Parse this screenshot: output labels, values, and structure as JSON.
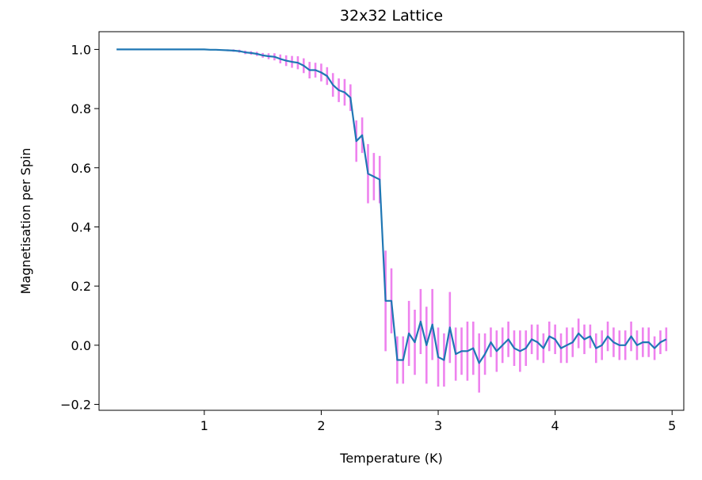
{
  "chart_data": {
    "type": "line",
    "title": "32x32 Lattice",
    "xlabel": "Temperature (K)",
    "ylabel": "Magnetisation per Spin",
    "xlim": [
      0.1,
      5.1
    ],
    "ylim": [
      -0.22,
      1.06
    ],
    "xticks": [
      1,
      2,
      3,
      4,
      5
    ],
    "yticks": [
      -0.2,
      0.0,
      0.2,
      0.4,
      0.6,
      0.8,
      1.0
    ],
    "xtick_labels": [
      "1",
      "2",
      "3",
      "4",
      "5"
    ],
    "ytick_labels": [
      "−0.2",
      "0.0",
      "0.2",
      "0.4",
      "0.6",
      "0.8",
      "1.0"
    ],
    "grid": false,
    "line_color": "#1f77b4",
    "errorbar_color": "#ee82ee",
    "series": [
      {
        "x": [
          0.25,
          0.3,
          0.35,
          0.4,
          0.45,
          0.5,
          0.55,
          0.6,
          0.65,
          0.7,
          0.75,
          0.8,
          0.85,
          0.9,
          0.95,
          1.0,
          1.05,
          1.1,
          1.15,
          1.2,
          1.25,
          1.3,
          1.35,
          1.4,
          1.45,
          1.5,
          1.55,
          1.6,
          1.65,
          1.7,
          1.75,
          1.8,
          1.85,
          1.9,
          1.95,
          2.0,
          2.05,
          2.1,
          2.15,
          2.2,
          2.25,
          2.3,
          2.35,
          2.4,
          2.45,
          2.5,
          2.55,
          2.6,
          2.65,
          2.7,
          2.75,
          2.8,
          2.85,
          2.9,
          2.95,
          3.0,
          3.05,
          3.1,
          3.15,
          3.2,
          3.25,
          3.3,
          3.35,
          3.4,
          3.45,
          3.5,
          3.55,
          3.6,
          3.65,
          3.7,
          3.75,
          3.8,
          3.85,
          3.9,
          3.95,
          4.0,
          4.05,
          4.1,
          4.15,
          4.2,
          4.25,
          4.3,
          4.35,
          4.4,
          4.45,
          4.5,
          4.55,
          4.6,
          4.65,
          4.7,
          4.75,
          4.8,
          4.85,
          4.9,
          4.95
        ],
        "y": [
          1.0,
          1.0,
          1.0,
          1.0,
          1.0,
          1.0,
          1.0,
          1.0,
          1.0,
          1.0,
          1.0,
          1.0,
          1.0,
          1.0,
          1.0,
          1.0,
          0.999,
          0.999,
          0.998,
          0.997,
          0.996,
          0.994,
          0.99,
          0.988,
          0.985,
          0.98,
          0.977,
          0.975,
          0.968,
          0.962,
          0.958,
          0.955,
          0.945,
          0.93,
          0.93,
          0.922,
          0.91,
          0.88,
          0.862,
          0.855,
          0.837,
          0.69,
          0.71,
          0.58,
          0.57,
          0.56,
          0.15,
          0.15,
          -0.05,
          -0.05,
          0.04,
          0.01,
          0.08,
          0.0,
          0.07,
          -0.04,
          -0.05,
          0.06,
          -0.03,
          -0.02,
          -0.02,
          -0.01,
          -0.06,
          -0.03,
          0.01,
          -0.02,
          0.0,
          0.02,
          -0.01,
          -0.02,
          -0.01,
          0.02,
          0.01,
          -0.01,
          0.03,
          0.02,
          -0.01,
          0.0,
          0.01,
          0.04,
          0.02,
          0.03,
          -0.01,
          0.0,
          0.03,
          0.01,
          0.0,
          0.0,
          0.03,
          0.0,
          0.01,
          0.01,
          -0.01,
          0.01,
          0.02
        ],
        "err": [
          0.0,
          0.0,
          0.0,
          0.0,
          0.0,
          0.0,
          0.0,
          0.0,
          0.0,
          0.0,
          0.0,
          0.0,
          0.0,
          0.0,
          0.0,
          0.0,
          0.001,
          0.001,
          0.002,
          0.003,
          0.004,
          0.005,
          0.006,
          0.006,
          0.007,
          0.008,
          0.01,
          0.012,
          0.015,
          0.018,
          0.02,
          0.022,
          0.025,
          0.028,
          0.025,
          0.03,
          0.03,
          0.04,
          0.04,
          0.045,
          0.045,
          0.07,
          0.06,
          0.1,
          0.08,
          0.08,
          0.17,
          0.11,
          0.08,
          0.08,
          0.11,
          0.11,
          0.11,
          0.13,
          0.12,
          0.1,
          0.09,
          0.12,
          0.09,
          0.08,
          0.1,
          0.09,
          0.1,
          0.07,
          0.05,
          0.07,
          0.06,
          0.06,
          0.06,
          0.07,
          0.06,
          0.05,
          0.06,
          0.05,
          0.05,
          0.05,
          0.05,
          0.06,
          0.05,
          0.05,
          0.05,
          0.04,
          0.05,
          0.05,
          0.05,
          0.05,
          0.05,
          0.05,
          0.05,
          0.05,
          0.05,
          0.05,
          0.04,
          0.04,
          0.04
        ]
      }
    ]
  }
}
